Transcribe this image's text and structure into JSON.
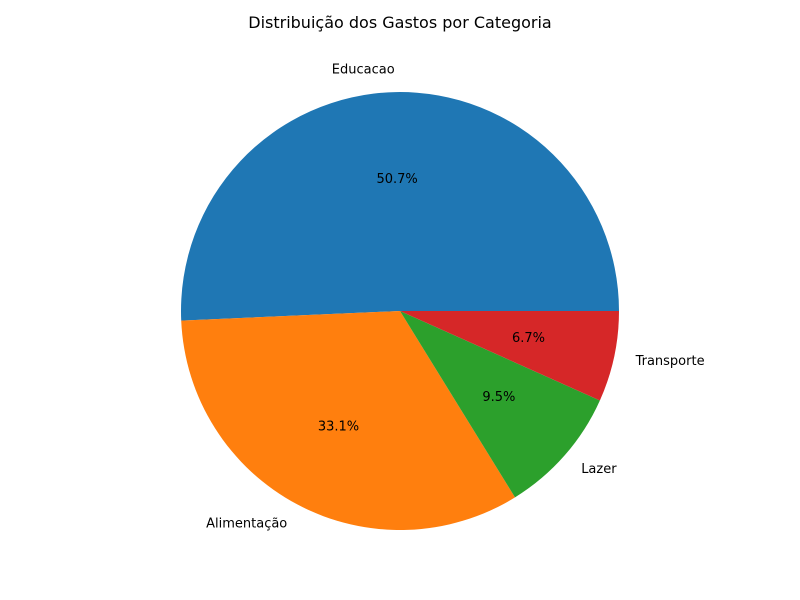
{
  "chart_data": {
    "type": "pie",
    "title": "Distribuição dos Gastos por Categoria",
    "categories": [
      "Educacao",
      "Alimentação",
      "Lazer",
      "Transporte"
    ],
    "values": [
      50.7,
      33.1,
      9.5,
      6.7
    ],
    "percent_labels": [
      "50.7%",
      "33.1%",
      "9.5%",
      "6.7%"
    ],
    "colors": [
      "#1f77b4",
      "#ff7f0e",
      "#2ca02c",
      "#d62728"
    ],
    "start_angle_deg": 0,
    "direction": "counterclockwise"
  }
}
